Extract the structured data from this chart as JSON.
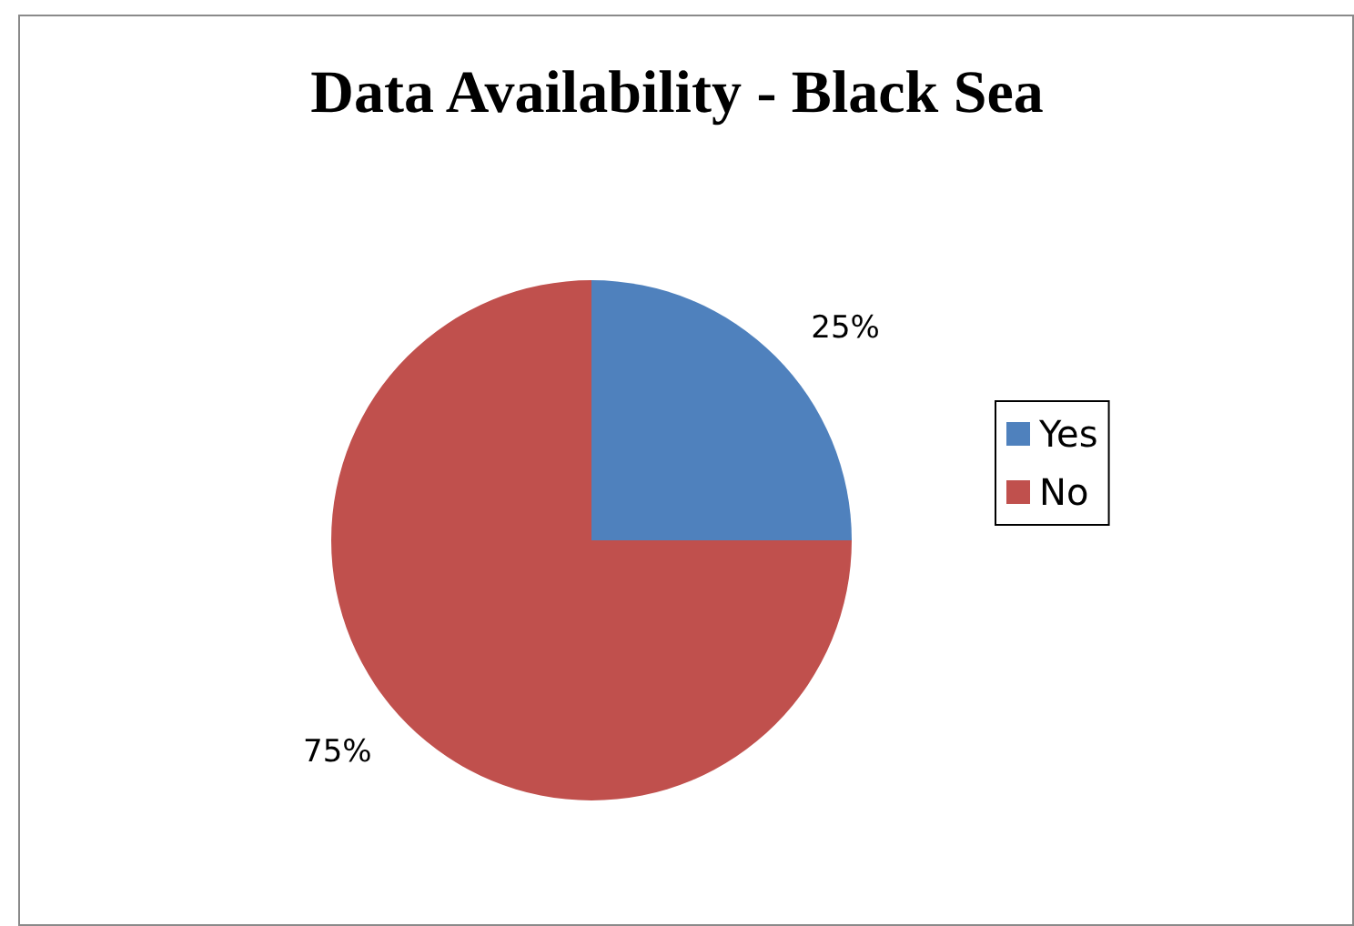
{
  "chart_data": {
    "type": "pie",
    "title": "Data Availability - Black Sea",
    "categories": [
      "Yes",
      "No"
    ],
    "values": [
      25,
      75
    ],
    "colors": [
      "#4f81bd",
      "#c0504d"
    ],
    "value_labels": [
      "25%",
      "75%"
    ],
    "legend": "right"
  }
}
